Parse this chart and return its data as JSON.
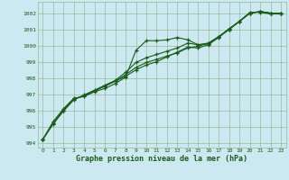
{
  "background_color": "#cce8f0",
  "grid_color": "#99bb99",
  "line_color": "#1a5c1a",
  "title": "Graphe pression niveau de la mer (hPa)",
  "xlim": [
    -0.5,
    23.5
  ],
  "ylim": [
    993.7,
    1002.7
  ],
  "yticks": [
    994,
    995,
    996,
    997,
    998,
    999,
    1000,
    1001,
    1002
  ],
  "xticks": [
    0,
    1,
    2,
    3,
    4,
    5,
    6,
    7,
    8,
    9,
    10,
    11,
    12,
    13,
    14,
    15,
    16,
    17,
    18,
    19,
    20,
    21,
    22,
    23
  ],
  "series": [
    [
      994.2,
      995.3,
      996.1,
      996.75,
      996.85,
      997.15,
      997.35,
      997.65,
      998.05,
      999.7,
      1000.3,
      1000.3,
      1000.35,
      1000.5,
      1000.35,
      1000.05,
      1000.1,
      1000.55,
      1001.05,
      1001.5,
      1002.05,
      1002.05,
      1001.95,
      1001.95
    ],
    [
      994.2,
      995.2,
      996.0,
      996.7,
      996.9,
      997.2,
      997.5,
      997.8,
      998.1,
      998.5,
      998.8,
      999.0,
      999.3,
      999.6,
      999.9,
      999.85,
      1000.05,
      1000.5,
      1001.0,
      1001.5,
      1002.0,
      1002.1,
      1002.0,
      1002.0
    ],
    [
      994.2,
      995.2,
      996.0,
      996.7,
      996.9,
      997.2,
      997.5,
      997.8,
      998.2,
      998.65,
      998.95,
      999.15,
      999.35,
      999.55,
      999.85,
      999.95,
      1000.15,
      1000.55,
      1001.0,
      1001.5,
      1002.0,
      1002.1,
      1002.0,
      1002.0
    ],
    [
      994.2,
      995.15,
      995.95,
      996.65,
      996.95,
      997.25,
      997.55,
      997.85,
      998.35,
      998.95,
      999.25,
      999.45,
      999.65,
      999.85,
      1000.15,
      1000.05,
      1000.15,
      1000.55,
      1001.0,
      1001.5,
      1002.0,
      1002.1,
      1002.0,
      1002.0
    ]
  ]
}
